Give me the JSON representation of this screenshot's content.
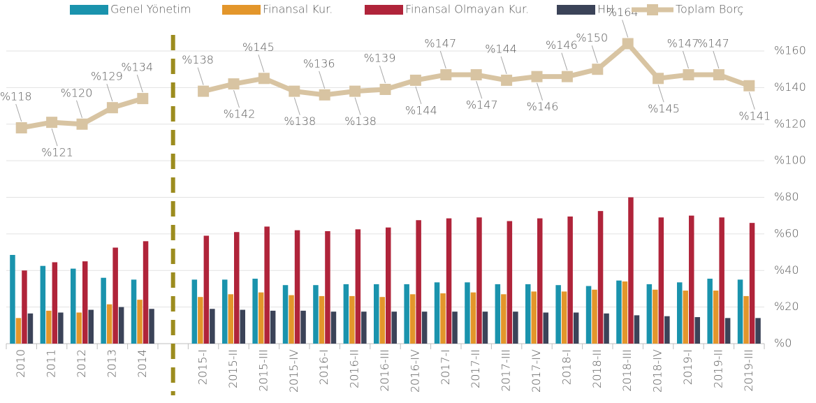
{
  "chart_data": {
    "type": "bar",
    "categories": [
      "2010",
      "2011",
      "2012",
      "2013",
      "2014",
      null,
      "2015-I",
      "2015-II",
      "2015-III",
      "2015-IV",
      "2016-I",
      "2016-II",
      "2016-III",
      "2016-IV",
      "2017-I",
      "2017-II",
      "2017-III",
      "2017-IV",
      "2018-I",
      "2018-II",
      "2018-III",
      "2018-IV",
      "2019-I",
      "2019-II",
      "2019-III"
    ],
    "ylim": [
      0,
      160
    ],
    "yticks": [
      {
        "value": 0,
        "label": "%0"
      },
      {
        "value": 20,
        "label": "%20"
      },
      {
        "value": 40,
        "label": "%40"
      },
      {
        "value": 60,
        "label": "%60"
      },
      {
        "value": 80,
        "label": "%80"
      },
      {
        "value": 100,
        "label": "%100"
      },
      {
        "value": 120,
        "label": "%120"
      },
      {
        "value": 140,
        "label": "%140"
      },
      {
        "value": 160,
        "label": "%160"
      }
    ],
    "grid": true,
    "legend": "top",
    "series": [
      {
        "name": "Genel Yönetim",
        "type": "bar",
        "color": "#1a93ad",
        "values": [
          48.5,
          42.5,
          41,
          36,
          35,
          null,
          35,
          35,
          35.5,
          32,
          32,
          32.5,
          32.5,
          32.5,
          33.5,
          33.5,
          32.5,
          32.5,
          32,
          31.5,
          34.5,
          32.5,
          33.5,
          35.5,
          35
        ]
      },
      {
        "name": "Finansal Kur.",
        "type": "bar",
        "color": "#e3962b",
        "values": [
          14,
          18,
          17,
          21.5,
          24,
          null,
          25.5,
          27,
          28,
          26.5,
          26,
          26,
          25.5,
          27,
          27.5,
          28,
          27,
          28.5,
          28.5,
          29.5,
          34,
          29.5,
          29,
          29,
          26
        ]
      },
      {
        "name": "Finansal Olmayan Kur.",
        "type": "bar",
        "color": "#b0243a",
        "values": [
          40,
          44.5,
          45,
          52.5,
          56,
          null,
          59,
          61,
          64,
          62,
          61.5,
          62.5,
          63.5,
          67.5,
          68.5,
          69,
          67,
          68.5,
          69.5,
          72.5,
          80,
          69,
          70,
          69,
          66
        ]
      },
      {
        "name": "HH",
        "type": "bar",
        "color": "#3b4358",
        "values": [
          16.5,
          17,
          18.5,
          20,
          19,
          null,
          19,
          18.5,
          18,
          18,
          17.5,
          17.5,
          17.5,
          17.5,
          17.5,
          17.5,
          17.5,
          17,
          17,
          16.5,
          15.5,
          15,
          14.5,
          14,
          14
        ]
      },
      {
        "name": "Toplam Borç",
        "type": "line",
        "color": "#d8c4a2",
        "values": [
          118,
          121,
          120,
          129,
          134,
          null,
          138,
          142,
          145,
          138,
          136,
          138,
          139,
          144,
          147,
          147,
          144,
          146,
          146,
          150,
          164,
          145,
          147,
          147,
          141
        ],
        "value_labels": [
          "%118",
          "%121",
          "%120",
          "%129",
          "%134",
          null,
          "%138",
          "%142",
          "%145",
          "%138",
          "%136",
          "%138",
          "%139",
          "%144",
          "%147",
          "%147",
          "%144",
          "%146",
          "%146",
          "%150",
          "%164",
          "%145",
          "%147",
          "%147",
          "%141"
        ]
      }
    ]
  }
}
